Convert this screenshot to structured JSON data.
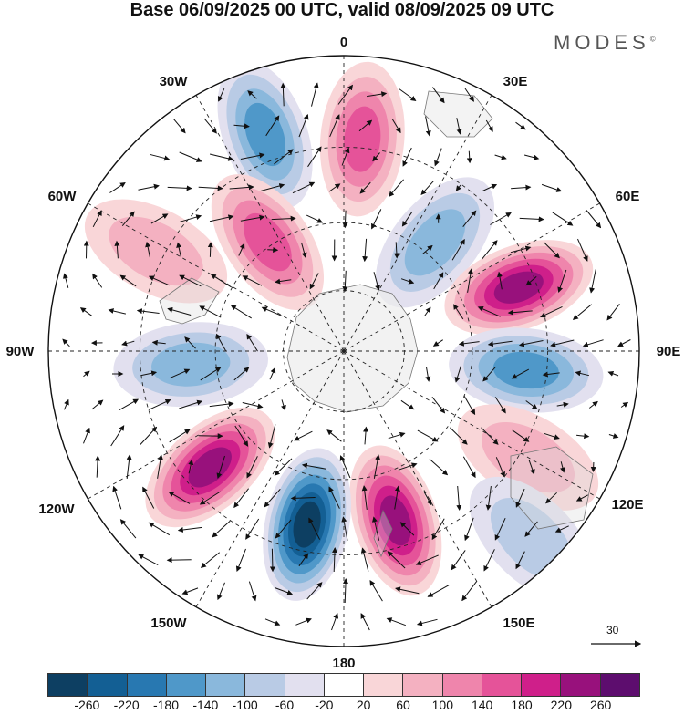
{
  "title": "Base 06/09/2025 00 UTC, valid 08/09/2025 09 UTC",
  "logo": {
    "text": "MODES",
    "mark": "©"
  },
  "longitude_labels": [
    "0",
    "30E",
    "60E",
    "90E",
    "120E",
    "150E",
    "180",
    "150W",
    "120W",
    "90W",
    "60W",
    "30W"
  ],
  "colorbar": {
    "colors": [
      "#0d3f62",
      "#135f94",
      "#2878b1",
      "#4f98c9",
      "#8ab8dc",
      "#b9cbe5",
      "#e2e0ef",
      "#ffffff",
      "#f9d6d8",
      "#f4b1c1",
      "#ef85ac",
      "#e55399",
      "#cf1f8a",
      "#98117c",
      "#5d0d6e"
    ],
    "ticks": [
      "-260",
      "-220",
      "-180",
      "-140",
      "-100",
      "-60",
      "-20",
      "20",
      "60",
      "100",
      "140",
      "180",
      "220",
      "260"
    ]
  },
  "anomalies": [
    {
      "value": -160,
      "lon": -20,
      "colat": 0.78
    },
    {
      "value": 140,
      "lon": 5,
      "colat": 0.72
    },
    {
      "value": -100,
      "lon": 40,
      "colat": 0.48
    },
    {
      "value": 140,
      "lon": -35,
      "colat": 0.45
    },
    {
      "value": 220,
      "lon": 70,
      "colat": 0.63
    },
    {
      "value": -160,
      "lon": 96,
      "colat": 0.62
    },
    {
      "value": 230,
      "lon": 163,
      "colat": 0.6
    },
    {
      "value": -270,
      "lon": -168,
      "colat": 0.6
    },
    {
      "value": 250,
      "lon": -131,
      "colat": 0.6
    },
    {
      "value": -120,
      "lon": -95,
      "colat": 0.52
    },
    {
      "value": 80,
      "lon": -62,
      "colat": 0.72
    },
    {
      "value": 60,
      "lon": 120,
      "colat": 0.72
    },
    {
      "value": -60,
      "lon": 135,
      "colat": 0.9
    }
  ],
  "wind_scale": {
    "value": "30"
  }
}
